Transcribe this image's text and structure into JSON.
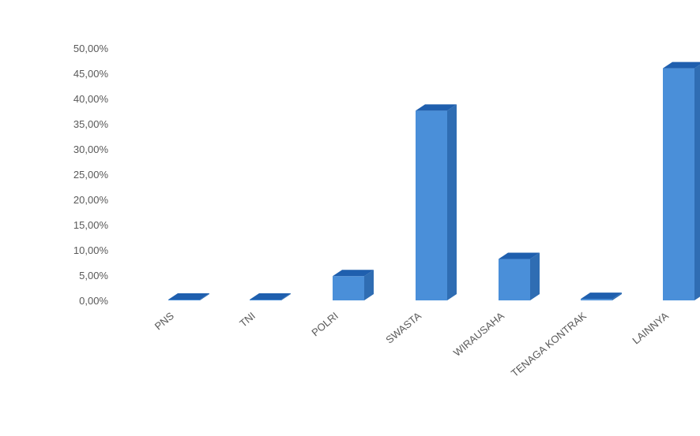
{
  "chart_data": {
    "type": "bar",
    "style": "3d-column",
    "categories": [
      "PNS",
      "TNI",
      "POLRI",
      "SWASTA",
      "WIRAUSAHA",
      "TENAGA KONTRAK",
      "LAINNYA"
    ],
    "values": [
      0.0,
      0.0,
      4.8,
      37.6,
      8.2,
      0.3,
      46.0
    ],
    "ylim": [
      0,
      50
    ],
    "yticks": [
      0,
      5,
      10,
      15,
      20,
      25,
      30,
      35,
      40,
      45,
      50
    ],
    "ytick_labels": [
      "0,00%",
      "5,00%",
      "10,00%",
      "15,00%",
      "20,00%",
      "25,00%",
      "30,00%",
      "35,00%",
      "40,00%",
      "45,00%",
      "50,00%"
    ],
    "title": "",
    "xlabel": "",
    "ylabel": "",
    "grid": false,
    "legend": "none",
    "colors": {
      "front": "#4a8fd9",
      "side": "#2f6db3",
      "top": "#1f5fae",
      "tick_text": "#595959"
    }
  }
}
